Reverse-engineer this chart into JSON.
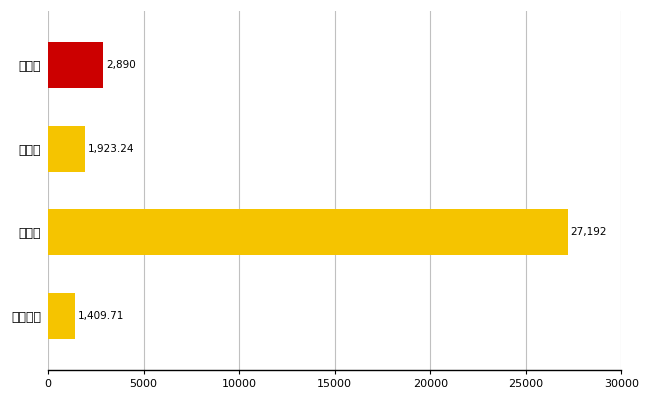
{
  "categories": [
    "飯塚市",
    "県平均",
    "県最大",
    "全国平均"
  ],
  "values": [
    2890,
    1923.24,
    27192,
    1409.71
  ],
  "labels": [
    "2,890",
    "1,923.24",
    "27,192",
    "1,409.71"
  ],
  "colors": [
    "#cc0000",
    "#f5c400",
    "#f5c400",
    "#f5c400"
  ],
  "xlim": [
    0,
    30000
  ],
  "xticks": [
    0,
    5000,
    10000,
    15000,
    20000,
    25000,
    30000
  ],
  "xtick_labels": [
    "0",
    "5000",
    "10000",
    "15000",
    "20000",
    "25000",
    "30000"
  ],
  "background_color": "#ffffff",
  "grid_color": "#c0c0c0",
  "bar_height": 0.55,
  "figsize": [
    6.5,
    4.0
  ],
  "dpi": 100
}
